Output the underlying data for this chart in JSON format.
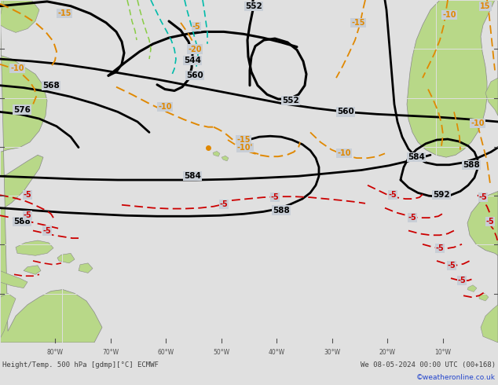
{
  "title_bottom_left": "Height/Temp. 500 hPa [gdmp][°C] ECMWF",
  "title_bottom_right": "We 08-05-2024 00:00 UTC (00+168)",
  "copyright": "©weatheronline.co.uk",
  "bg_ocean": "#c8ced6",
  "bg_land_light": "#b8d888",
  "bg_land_mid": "#90c060",
  "border_color": "#888888",
  "grid_color": "#e0e0e0",
  "z500_color": "#000000",
  "temp_warm_color": "#e08800",
  "temp_cold_color": "#cc0000",
  "temp_cyan_color": "#00bbaa",
  "temp_green_color": "#88cc44",
  "bottom_bar_color": "#e0e0e0",
  "bottom_text_color": "#404040",
  "copyright_color": "#2244cc",
  "fig_width": 6.34,
  "fig_height": 4.9,
  "dpi": 100
}
